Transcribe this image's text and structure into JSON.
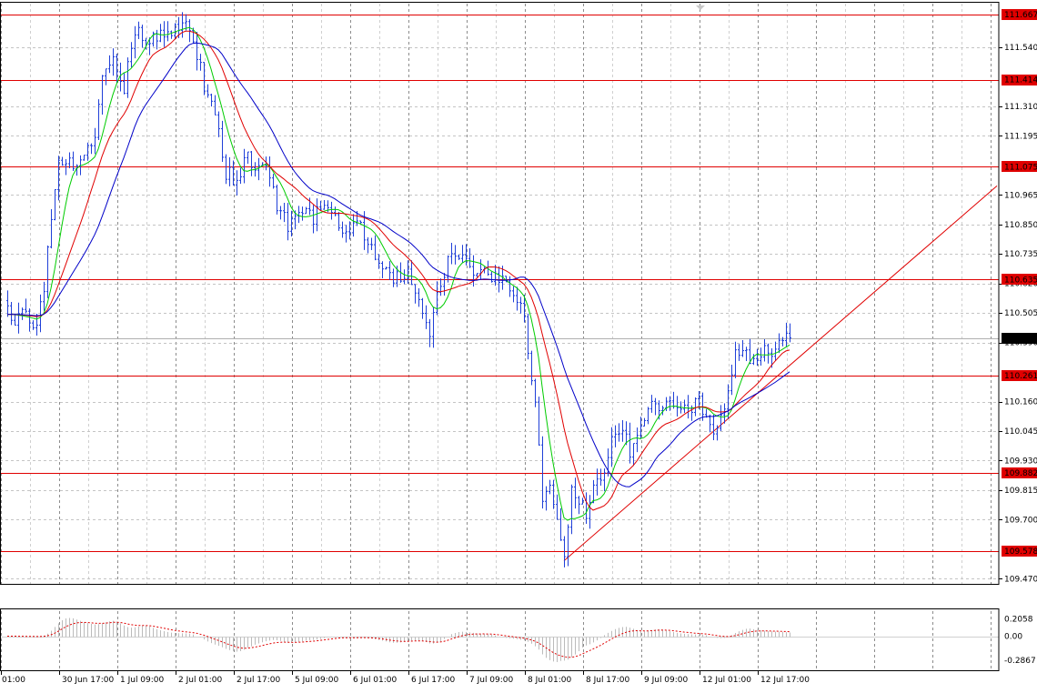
{
  "chart_data": {
    "type": "candlestick",
    "symbol": "",
    "timeframe": "H1",
    "y_ticks": [
      "111.540",
      "111.310",
      "111.195",
      "110.965",
      "110.850",
      "110.735",
      "110.620",
      "110.505",
      "110.390",
      "110.160",
      "110.045",
      "109.930",
      "109.815",
      "109.700",
      "109.470"
    ],
    "ylim": [
      109.45,
      111.71
    ],
    "time_labels": [
      "01:00",
      "30 Jun 17:00",
      "1 Jul 09:00",
      "2 Jul 01:00",
      "2 Jul 17:00",
      "5 Jul 09:00",
      "6 Jul 01:00",
      "6 Jul 17:00",
      "7 Jul 09:00",
      "8 Jul 01:00",
      "8 Jul 17:00",
      "9 Jul 09:00",
      "12 Jul 01:00",
      "12 Jul 17:00"
    ],
    "levels": [
      {
        "label": "111.667",
        "value": 111.667
      },
      {
        "label": "111.414",
        "value": 111.414
      },
      {
        "label": "111.075",
        "value": 111.075
      },
      {
        "label": "110.635",
        "value": 110.635
      },
      {
        "label": "110.261",
        "value": 110.261
      },
      {
        "label": "109.882",
        "value": 109.882
      },
      {
        "label": "109.578",
        "value": 109.578
      }
    ],
    "current_price": {
      "label": "110.408",
      "value": 110.408
    },
    "trendline": {
      "start": {
        "bar": 153,
        "price": 109.54
      },
      "end": {
        "bar": 272,
        "price": 111.0
      }
    },
    "close_path": [
      [
        0,
        110.5
      ],
      [
        8,
        110.47
      ],
      [
        10,
        110.6
      ],
      [
        12,
        110.9
      ],
      [
        14,
        111.07
      ],
      [
        17,
        111.09
      ],
      [
        20,
        111.07
      ],
      [
        24,
        111.18
      ],
      [
        26,
        111.42
      ],
      [
        28,
        111.5
      ],
      [
        32,
        111.38
      ],
      [
        35,
        111.62
      ],
      [
        38,
        111.58
      ],
      [
        42,
        111.59
      ],
      [
        46,
        111.62
      ],
      [
        50,
        111.62
      ],
      [
        52,
        111.5
      ],
      [
        55,
        111.35
      ],
      [
        58,
        111.22
      ],
      [
        60,
        111.05
      ],
      [
        63,
        111.02
      ],
      [
        66,
        111.12
      ],
      [
        68,
        111.05
      ],
      [
        71,
        111.1
      ],
      [
        74,
        110.92
      ],
      [
        77,
        110.85
      ],
      [
        80,
        110.9
      ],
      [
        84,
        110.88
      ],
      [
        87,
        110.94
      ],
      [
        90,
        110.89
      ],
      [
        93,
        110.83
      ],
      [
        96,
        110.87
      ],
      [
        99,
        110.8
      ],
      [
        102,
        110.72
      ],
      [
        105,
        110.63
      ],
      [
        108,
        110.66
      ],
      [
        111,
        110.65
      ],
      [
        114,
        110.52
      ],
      [
        116,
        110.4
      ],
      [
        118,
        110.6
      ],
      [
        121,
        110.7
      ],
      [
        124,
        110.74
      ],
      [
        127,
        110.67
      ],
      [
        130,
        110.7
      ],
      [
        133,
        110.62
      ],
      [
        136,
        110.63
      ],
      [
        139,
        110.58
      ],
      [
        142,
        110.5
      ],
      [
        144,
        110.25
      ],
      [
        146,
        110.0
      ],
      [
        147,
        109.75
      ],
      [
        149,
        109.8
      ],
      [
        151,
        109.7
      ],
      [
        153,
        109.55
      ],
      [
        155,
        109.82
      ],
      [
        157,
        109.78
      ],
      [
        159,
        109.7
      ],
      [
        161,
        109.82
      ],
      [
        163,
        109.85
      ],
      [
        165,
        109.94
      ],
      [
        167,
        110.05
      ],
      [
        169,
        110.05
      ],
      [
        171,
        109.97
      ],
      [
        174,
        110.03
      ],
      [
        176,
        110.13
      ],
      [
        178,
        110.16
      ],
      [
        181,
        110.13
      ],
      [
        184,
        110.14
      ],
      [
        187,
        110.13
      ],
      [
        190,
        110.15
      ],
      [
        192,
        110.12
      ],
      [
        194,
        110.03
      ],
      [
        196,
        110.12
      ],
      [
        198,
        110.17
      ],
      [
        200,
        110.36
      ],
      [
        202,
        110.35
      ],
      [
        205,
        110.33
      ],
      [
        208,
        110.35
      ],
      [
        211,
        110.36
      ],
      [
        213,
        110.4
      ],
      [
        215,
        110.41
      ]
    ],
    "indicators": [
      {
        "type": "moving_average",
        "color": "#00cc00",
        "lag": 3
      },
      {
        "type": "moving_average",
        "color": "#e00000",
        "lag": 7
      },
      {
        "type": "moving_average",
        "color": "#0000c8",
        "lag": 12
      }
    ],
    "oscillator": {
      "y_ticks": [
        "0.2058",
        "0.00",
        "-0.2867"
      ],
      "ylim": [
        -0.42,
        0.3
      ],
      "zero": 0.0,
      "signal_color": "#e00000",
      "hist_color": "#bbbbbb"
    },
    "colors": {
      "bar": "#1f3fd8",
      "level": "#e00000",
      "grid": "#8c8c8c",
      "price_tag_bg": "#e00000"
    }
  }
}
